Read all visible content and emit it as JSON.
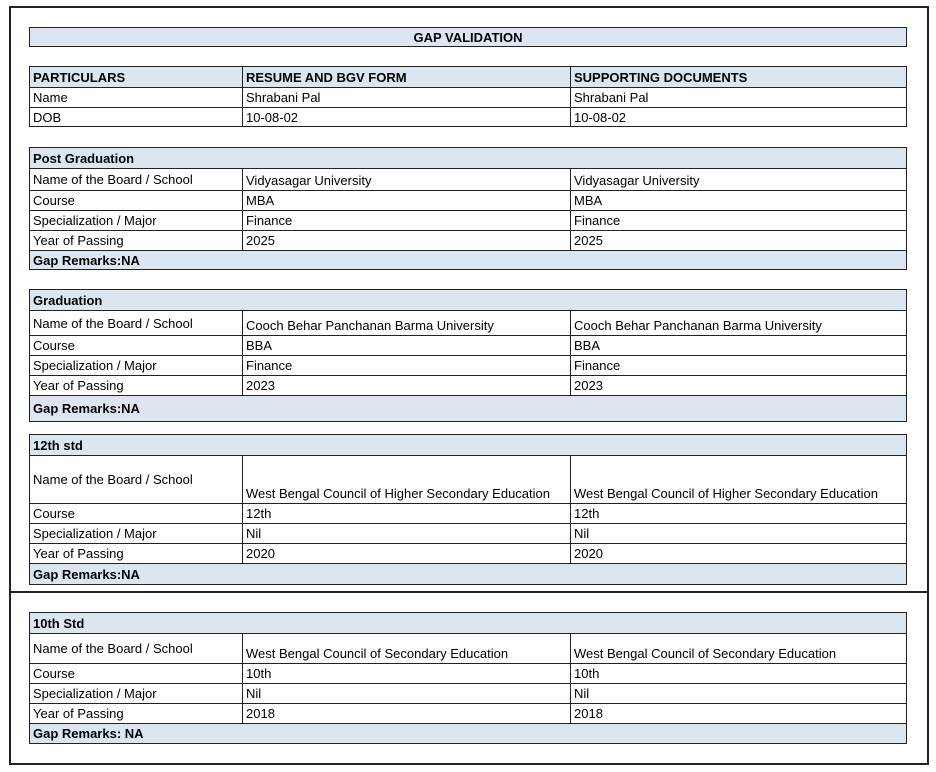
{
  "title": "GAP VALIDATION",
  "header": [
    "PARTICULARS",
    "RESUME AND BGV FORM",
    "SUPPORTING DOCUMENTS"
  ],
  "personal": [
    [
      "Name",
      "Shrabani Pal",
      "Shrabani Pal"
    ],
    [
      "DOB",
      "10-08-02",
      "10-08-02"
    ]
  ],
  "sections": [
    {
      "title": "Post Graduation",
      "rows": [
        [
          "Name of the Board / School",
          "Vidyasagar University",
          "Vidyasagar University"
        ],
        [
          "Course",
          "MBA",
          "MBA"
        ],
        [
          "Specialization / Major",
          "Finance",
          "Finance"
        ],
        [
          "Year of Passing",
          "2025",
          "2025"
        ]
      ],
      "remarks": "Gap Remarks:NA"
    },
    {
      "title": "Graduation",
      "rows": [
        [
          "Name of the Board / School",
          "Cooch Behar Panchanan Barma University",
          "Cooch Behar Panchanan Barma University"
        ],
        [
          "Course",
          "BBA",
          "BBA"
        ],
        [
          "Specialization / Major",
          "Finance",
          "Finance"
        ],
        [
          "Year of Passing",
          "2023",
          "2023"
        ]
      ],
      "remarks": "Gap Remarks:NA"
    },
    {
      "title": "12th std",
      "rows": [
        [
          "Name of the Board / School",
          "West Bengal Council of Higher Secondary Education",
          "West Bengal Council of Higher Secondary Education"
        ],
        [
          "Course",
          "12th",
          "12th"
        ],
        [
          "Specialization / Major",
          "Nil",
          "Nil"
        ],
        [
          "Year of Passing",
          "2020",
          "2020"
        ]
      ],
      "remarks": "Gap Remarks:NA"
    },
    {
      "title": "10th Std",
      "rows": [
        [
          "Name of the Board / School",
          "West Bengal Council of Secondary Education",
          "West Bengal Council of Secondary Education"
        ],
        [
          "Course",
          "10th",
          "10th"
        ],
        [
          "Specialization / Major",
          "Nil",
          "Nil"
        ],
        [
          "Year of Passing",
          "2018",
          "2018"
        ]
      ],
      "remarks": "Gap Remarks: NA"
    }
  ]
}
